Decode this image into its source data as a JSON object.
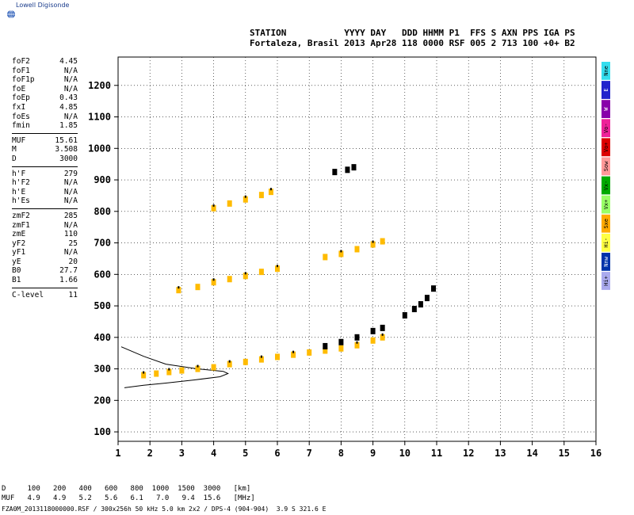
{
  "logo_text": "Lowell Digisonde",
  "header": {
    "line1": "STATION           YYYY DAY   DDD HHMM P1  FFS S AXN PPS IGA PS",
    "line2": "Fortaleza, Brasil 2013 Apr28 118 0000 RSF 005 2 713 100 +0+ B2"
  },
  "params": {
    "group1": [
      {
        "k": "foF2",
        "v": "4.45"
      },
      {
        "k": "foF1",
        "v": "N/A"
      },
      {
        "k": "foF1p",
        "v": "N/A"
      },
      {
        "k": "foE",
        "v": "N/A"
      },
      {
        "k": "foEp",
        "v": "0.43"
      },
      {
        "k": "fxI",
        "v": "4.85"
      },
      {
        "k": "foEs",
        "v": "N/A"
      },
      {
        "k": "fmin",
        "v": "1.85"
      }
    ],
    "group2": [
      {
        "k": "MUF",
        "v": "15.61"
      },
      {
        "k": "M",
        "v": "3.508"
      },
      {
        "k": "D",
        "v": "3000"
      }
    ],
    "group3": [
      {
        "k": "h'F",
        "v": "279"
      },
      {
        "k": "h'F2",
        "v": "N/A"
      },
      {
        "k": "h'E",
        "v": "N/A"
      },
      {
        "k": "h'Es",
        "v": "N/A"
      }
    ],
    "group4": [
      {
        "k": "zmF2",
        "v": "285"
      },
      {
        "k": "zmF1",
        "v": "N/A"
      },
      {
        "k": "zmE",
        "v": "110"
      },
      {
        "k": "yF2",
        "v": "25"
      },
      {
        "k": "yF1",
        "v": "N/A"
      },
      {
        "k": "yE",
        "v": "20"
      },
      {
        "k": "B0",
        "v": "27.7"
      },
      {
        "k": "B1",
        "v": "1.66"
      }
    ],
    "group5": [
      {
        "k": "C-level",
        "v": "11"
      }
    ]
  },
  "footer": {
    "line1": "D     100   200   400   600   800  1000  1500  3000   [km]",
    "line2": "MUF   4.9   4.9   5.2   5.6   6.1   7.0   9.4  15.6   [MHz]",
    "line3": "FZA0M_2013118000000.RSF / 300x256h 50 kHz 5.0 km 2x2 / DPS-4 (904-904)  3.9 S 321.6 E"
  },
  "modes": [
    {
      "label": "Nne",
      "color": "#33ddee"
    },
    {
      "label": "E",
      "color": "#2222cc"
    },
    {
      "label": "W",
      "color": "#8800aa"
    },
    {
      "label": "Vo-",
      "color": "#ee2299"
    },
    {
      "label": "Vo+",
      "color": "#dd0000"
    },
    {
      "label": "Sow",
      "color": "#ff9999"
    },
    {
      "label": "Vx-",
      "color": "#00aa00"
    },
    {
      "label": "Vx+",
      "color": "#99ff66"
    },
    {
      "label": "Sxe",
      "color": "#ffaa00"
    },
    {
      "label": "Hi-",
      "color": "#ffff44"
    },
    {
      "label": "Nnw",
      "color": "#0033aa"
    },
    {
      "label": "Hi+",
      "color": "#aaaaee"
    }
  ],
  "chart_data": {
    "type": "scatter",
    "xlim": [
      1,
      16
    ],
    "ylim": [
      70,
      1290
    ],
    "x_ticks": [
      1,
      2,
      3,
      4,
      5,
      6,
      7,
      8,
      9,
      10,
      11,
      12,
      13,
      14,
      15,
      16
    ],
    "y_ticks": [
      100,
      200,
      300,
      400,
      500,
      600,
      700,
      800,
      900,
      1000,
      1100,
      1200
    ],
    "grid": "dotted",
    "traces": [
      {
        "name": "o-trace F layer",
        "color": "#ffbb00",
        "points": [
          [
            1.8,
            280
          ],
          [
            2.2,
            285
          ],
          [
            2.6,
            290
          ],
          [
            3.0,
            295
          ],
          [
            3.5,
            300
          ],
          [
            4.0,
            305
          ],
          [
            4.5,
            315
          ],
          [
            5.0,
            322
          ],
          [
            5.5,
            330
          ],
          [
            6.0,
            338
          ],
          [
            6.5,
            345
          ],
          [
            7.0,
            352
          ],
          [
            7.5,
            358
          ],
          [
            8.0,
            365
          ],
          [
            8.5,
            375
          ],
          [
            9.0,
            390
          ],
          [
            9.3,
            400
          ]
        ]
      },
      {
        "name": "x-trace F layer",
        "color": "#000000",
        "points": [
          [
            7.5,
            372
          ],
          [
            8.0,
            385
          ],
          [
            8.5,
            400
          ],
          [
            9.0,
            420
          ],
          [
            9.3,
            430
          ],
          [
            10.0,
            470
          ],
          [
            10.3,
            490
          ],
          [
            10.5,
            505
          ],
          [
            10.7,
            525
          ],
          [
            10.9,
            555
          ]
        ]
      },
      {
        "name": "2F trace",
        "color": "#ffbb00",
        "points": [
          [
            2.9,
            550
          ],
          [
            3.5,
            560
          ],
          [
            4.0,
            575
          ],
          [
            4.5,
            585
          ],
          [
            5.0,
            595
          ],
          [
            5.5,
            608
          ],
          [
            6.0,
            618
          ],
          [
            7.5,
            655
          ],
          [
            8.0,
            665
          ],
          [
            8.5,
            680
          ],
          [
            9.0,
            695
          ],
          [
            9.3,
            705
          ]
        ]
      },
      {
        "name": "3F trace",
        "color": "#ffbb00",
        "points": [
          [
            4.0,
            810
          ],
          [
            4.5,
            825
          ],
          [
            5.0,
            838
          ],
          [
            5.5,
            852
          ],
          [
            5.8,
            862
          ]
        ]
      },
      {
        "name": "4F trace",
        "color": "#000000",
        "points": [
          [
            7.8,
            925
          ],
          [
            8.2,
            932
          ],
          [
            8.4,
            940
          ]
        ]
      }
    ],
    "profile": [
      [
        1.1,
        370
      ],
      [
        1.8,
        340
      ],
      [
        2.5,
        315
      ],
      [
        3.5,
        300
      ],
      [
        4.3,
        292
      ],
      [
        4.45,
        285
      ],
      [
        4.2,
        275
      ],
      [
        3.4,
        265
      ],
      [
        2.5,
        255
      ],
      [
        1.8,
        248
      ],
      [
        1.2,
        240
      ]
    ]
  }
}
